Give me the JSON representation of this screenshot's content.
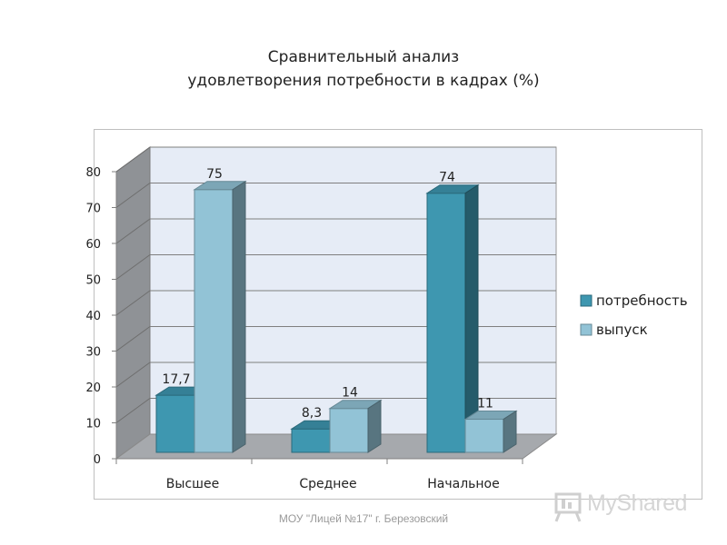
{
  "chart_data": {
    "type": "bar",
    "title_lines": [
      "Сравнительный анализ",
      "удовлетворения потребности в кадрах (%)"
    ],
    "categories": [
      "Высшее",
      "Среднее",
      "Начальное"
    ],
    "series": [
      {
        "name": "потребность",
        "values": [
          17.7,
          8.3,
          74
        ],
        "labels": [
          "17,7",
          "8,3",
          "74"
        ],
        "color": "#3e97b0"
      },
      {
        "name": "выпуск",
        "values": [
          75,
          14,
          11
        ],
        "labels": [
          "75",
          "14",
          "11"
        ],
        "color": "#92c3d6"
      }
    ],
    "yticks": [
      "0",
      "10",
      "20",
      "30",
      "40",
      "50",
      "60",
      "70",
      "80"
    ],
    "ylim": [
      0,
      80
    ],
    "grid": true,
    "legend": "right",
    "style": "3d-clustered-column"
  },
  "footer": "МОУ \"Лицей №17\" г. Березовский",
  "logo": {
    "text": "MyShared"
  }
}
